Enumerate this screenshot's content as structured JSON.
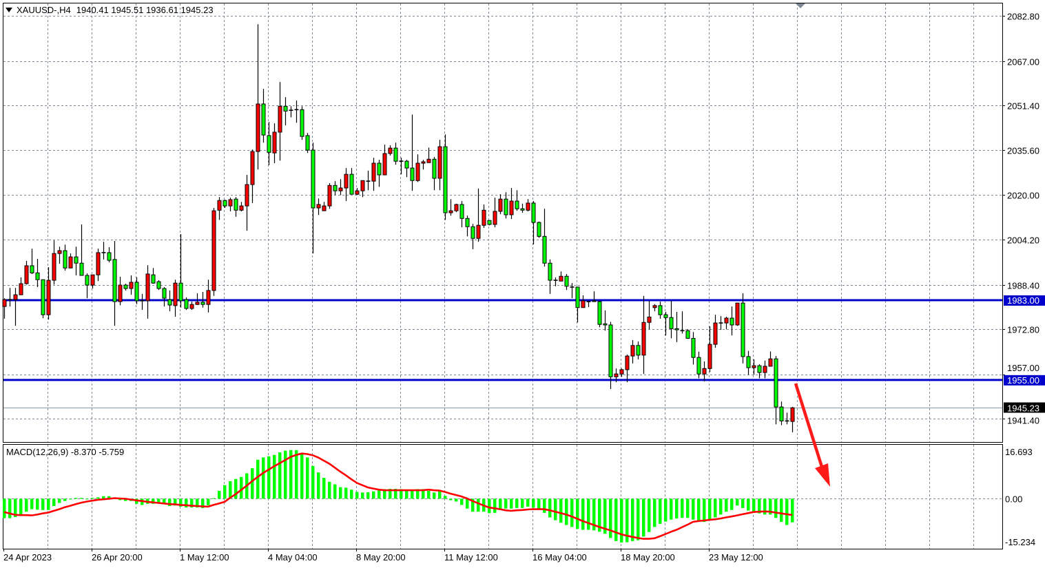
{
  "header": {
    "symbol_label": "XAUUSD-,H4",
    "ohlc": "1940.41 1945.51 1936.61 1945.23",
    "menu_icon": "triangle-down-icon"
  },
  "chart_data": {
    "type": "candlestick",
    "symbol": "XAUUSD-",
    "timeframe": "H4",
    "ylim": [
      1933.2,
      2087.2
    ],
    "grid": true,
    "up_color": "#ff0000",
    "down_color": "#00ff00",
    "outline_color": "#000000",
    "grid_color": "#7d8796",
    "y_ticks": [
      "2082.80",
      "2067.00",
      "2051.40",
      "2035.60",
      "2020.00",
      "2004.20",
      "1988.40",
      "1972.80",
      "1957.00",
      "1941.40"
    ],
    "x_ticks": [
      {
        "label": "24 Apr 2023",
        "candle": 1
      },
      {
        "label": "26 Apr 20:00",
        "candle": 17
      },
      {
        "label": "1 May 12:00",
        "candle": 33
      },
      {
        "label": "4 May 04:00",
        "candle": 49
      },
      {
        "label": "8 May 20:00",
        "candle": 65
      },
      {
        "label": "11 May 12:00",
        "candle": 81
      },
      {
        "label": "16 May 04:00",
        "candle": 97
      },
      {
        "label": "18 May 20:00",
        "candle": 113
      },
      {
        "label": "23 May 12:00",
        "candle": 129
      }
    ],
    "horizontal_levels": [
      {
        "price": 1983.0,
        "label": "1983.00",
        "color": "#0000cc"
      },
      {
        "price": 1955.0,
        "label": "1955.00",
        "color": "#0000cc"
      }
    ],
    "last_price": {
      "price": 1945.23,
      "label": "1945.23"
    },
    "annotation": {
      "type": "arrow",
      "direction": "down",
      "color": "#ff1a1a"
    },
    "candles_ohlc": [
      [
        1980.8,
        1983.7,
        1976.5,
        1983.2
      ],
      [
        1983.2,
        1987.3,
        1980.8,
        1983.2
      ],
      [
        1983.2,
        1987.3,
        1974.0,
        1984.9
      ],
      [
        1984.9,
        1991.0,
        1984.9,
        1988.8
      ],
      [
        1988.8,
        1996.8,
        1988.5,
        1995.1
      ],
      [
        1995.1,
        2001.1,
        1992.2,
        1992.6
      ],
      [
        1992.6,
        1997.5,
        1987.6,
        1990.2
      ],
      [
        1990.2,
        1990.2,
        1976.7,
        1977.9
      ],
      [
        1977.9,
        1994.6,
        1976.2,
        1990.0
      ],
      [
        1990.0,
        2004.0,
        1988.5,
        1999.4
      ],
      [
        1999.4,
        2001.8,
        1995.8,
        2000.4
      ],
      [
        2000.4,
        2002.5,
        1993.4,
        1994.3
      ],
      [
        1994.3,
        1999.4,
        1994.3,
        1998.2
      ],
      [
        1998.2,
        2001.8,
        1991.7,
        1996.0
      ],
      [
        1996.0,
        2009.6,
        1991.7,
        1991.7
      ],
      [
        1991.7,
        1992.4,
        1983.7,
        1988.3
      ],
      [
        1988.3,
        1991.9,
        1987.1,
        1991.9
      ],
      [
        1991.9,
        2001.1,
        1989.7,
        1999.7
      ],
      [
        1999.7,
        2003.5,
        1997.3,
        1999.7
      ],
      [
        1999.7,
        2001.6,
        1996.3,
        1997.0
      ],
      [
        1997.3,
        2003.8,
        1974.0,
        1982.5
      ],
      [
        1982.5,
        1991.2,
        1981.2,
        1988.3
      ],
      [
        1988.3,
        1988.8,
        1986.4,
        1987.1
      ],
      [
        1987.1,
        1991.7,
        1984.9,
        1989.3
      ],
      [
        1989.3,
        1991.0,
        1981.6,
        1982.8
      ],
      [
        1982.8,
        1985.2,
        1979.6,
        1982.8
      ],
      [
        1982.8,
        1995.3,
        1976.5,
        1992.2
      ],
      [
        1991.9,
        1994.3,
        1988.8,
        1989.0
      ],
      [
        1989.5,
        1990.0,
        1986.6,
        1987.1
      ],
      [
        1987.1,
        1987.6,
        1980.8,
        1983.7
      ],
      [
        1983.2,
        1986.4,
        1979.1,
        1981.3
      ],
      [
        1981.1,
        1990.2,
        1977.2,
        1989.0
      ],
      [
        1989.0,
        2006.2,
        1980.4,
        1982.8
      ],
      [
        1983.2,
        1984.0,
        1979.6,
        1980.1
      ],
      [
        1980.1,
        1982.5,
        1979.6,
        1981.5
      ],
      [
        1981.5,
        1985.4,
        1981.3,
        1982.3
      ],
      [
        1982.3,
        1985.9,
        1980.4,
        1981.5
      ],
      [
        1981.5,
        1990.2,
        1978.7,
        1986.4
      ],
      [
        1986.4,
        2015.4,
        1984.5,
        2014.4
      ],
      [
        2014.6,
        2019.2,
        2011.2,
        2018.0
      ],
      [
        2018.0,
        2018.3,
        2015.4,
        2016.1
      ],
      [
        2016.1,
        2019.0,
        2014.2,
        2018.3
      ],
      [
        2018.5,
        2019.2,
        2012.3,
        2014.6
      ],
      [
        2014.6,
        2017.5,
        2014.2,
        2016.1
      ],
      [
        2016.1,
        2027.0,
        2007.4,
        2023.6
      ],
      [
        2023.6,
        2035.9,
        2017.1,
        2035.2
      ],
      [
        2035.2,
        2079.9,
        2028.9,
        2051.9
      ],
      [
        2051.9,
        2057.2,
        2038.3,
        2041.0
      ],
      [
        2040.8,
        2045.6,
        2030.4,
        2034.9
      ],
      [
        2034.7,
        2045.1,
        2031.1,
        2042.0
      ],
      [
        2042.0,
        2059.6,
        2032.0,
        2051.1
      ],
      [
        2051.1,
        2054.3,
        2044.4,
        2049.4
      ],
      [
        2049.7,
        2051.1,
        2047.2,
        2049.7
      ],
      [
        2049.9,
        2053.1,
        2045.3,
        2049.9
      ],
      [
        2049.9,
        2051.1,
        2039.3,
        2040.5
      ],
      [
        2040.8,
        2041.7,
        2034.7,
        2035.7
      ],
      [
        2035.7,
        2038.3,
        1999.4,
        2015.4
      ],
      [
        2015.4,
        2018.7,
        2012.9,
        2016.6
      ],
      [
        2014.4,
        2017.5,
        2014.4,
        2016.1
      ],
      [
        2016.1,
        2024.1,
        2015.1,
        2023.3
      ],
      [
        2023.3,
        2024.8,
        2019.9,
        2021.4
      ],
      [
        2021.4,
        2025.5,
        2019.9,
        2022.4
      ],
      [
        2022.4,
        2029.4,
        2017.8,
        2027.2
      ],
      [
        2027.2,
        2029.4,
        2020.2,
        2020.2
      ],
      [
        2020.2,
        2022.4,
        2019.9,
        2021.4
      ],
      [
        2021.4,
        2025.0,
        2019.2,
        2025.0
      ],
      [
        2024.8,
        2028.5,
        2021.6,
        2024.8
      ],
      [
        2024.8,
        2033.0,
        2021.4,
        2031.1
      ],
      [
        2031.1,
        2032.3,
        2022.8,
        2027.0
      ],
      [
        2027.0,
        2037.6,
        2027.0,
        2034.5
      ],
      [
        2034.5,
        2037.4,
        2033.8,
        2036.4
      ],
      [
        2036.4,
        2038.3,
        2030.6,
        2031.8
      ],
      [
        2031.8,
        2033.0,
        2027.2,
        2031.8
      ],
      [
        2031.8,
        2032.3,
        2026.2,
        2029.4
      ],
      [
        2029.4,
        2048.2,
        2021.4,
        2025.0
      ],
      [
        2025.0,
        2034.2,
        2024.5,
        2031.1
      ],
      [
        2031.1,
        2032.3,
        2028.9,
        2031.6
      ],
      [
        2031.3,
        2036.6,
        2031.3,
        2032.5
      ],
      [
        2032.5,
        2033.3,
        2021.6,
        2025.8
      ],
      [
        2025.8,
        2039.3,
        2021.6,
        2036.9
      ],
      [
        2036.9,
        2041.2,
        2011.2,
        2013.7
      ],
      [
        2013.7,
        2018.5,
        2012.7,
        2014.4
      ],
      [
        2014.4,
        2016.9,
        2013.9,
        2016.6
      ],
      [
        2016.6,
        2017.8,
        2008.6,
        2011.7
      ],
      [
        2011.7,
        2012.7,
        2005.4,
        2008.8
      ],
      [
        2008.8,
        2009.8,
        2000.9,
        2004.7
      ],
      [
        2004.7,
        2022.2,
        2003.5,
        2009.3
      ],
      [
        2009.3,
        2016.6,
        2008.4,
        2014.6
      ],
      [
        2011.0,
        2011.0,
        2009.3,
        2009.6
      ],
      [
        2009.6,
        2019.0,
        2008.6,
        2014.2
      ],
      [
        2014.2,
        2020.2,
        2013.2,
        2018.5
      ],
      [
        2018.5,
        2020.9,
        2011.7,
        2013.0
      ],
      [
        2013.0,
        2022.4,
        2011.5,
        2017.8
      ],
      [
        2017.8,
        2021.6,
        2014.4,
        2015.1
      ],
      [
        2015.1,
        2016.9,
        2013.7,
        2014.6
      ],
      [
        2014.6,
        2018.5,
        2014.2,
        2017.1
      ],
      [
        2017.1,
        2017.8,
        2002.6,
        2010.3
      ],
      [
        2010.3,
        2010.6,
        2004.9,
        2005.4
      ],
      [
        2005.4,
        2015.1,
        1994.8,
        1996.0
      ],
      [
        1996.0,
        1997.3,
        1985.2,
        1990.0
      ],
      [
        1990.0,
        1991.0,
        1987.9,
        1990.0
      ],
      [
        1989.7,
        1993.1,
        1989.7,
        1991.4
      ],
      [
        1991.4,
        1992.2,
        1986.6,
        1987.9
      ],
      [
        1987.6,
        1989.0,
        1983.7,
        1987.6
      ],
      [
        1987.6,
        1987.6,
        1975.2,
        1980.4
      ],
      [
        1980.4,
        1984.7,
        1980.4,
        1982.8
      ],
      [
        1982.5,
        1982.8,
        1980.6,
        1982.5
      ],
      [
        1982.8,
        1986.1,
        1982.5,
        1982.5
      ],
      [
        1982.5,
        1982.8,
        1973.5,
        1974.5
      ],
      [
        1974.7,
        1979.4,
        1972.3,
        1974.3
      ],
      [
        1974.3,
        1975.4,
        1951.8,
        1956.1
      ],
      [
        1956.1,
        1959.0,
        1954.2,
        1957.1
      ],
      [
        1957.1,
        1959.0,
        1956.1,
        1958.6
      ],
      [
        1958.6,
        1963.9,
        1954.2,
        1963.4
      ],
      [
        1963.4,
        1969.0,
        1960.8,
        1967.1
      ],
      [
        1967.1,
        1968.5,
        1962.2,
        1963.7
      ],
      [
        1963.7,
        1984.5,
        1957.1,
        1975.2
      ],
      [
        1975.2,
        1982.8,
        1972.8,
        1977.1
      ],
      [
        1980.4,
        1981.6,
        1979.1,
        1981.1
      ],
      [
        1981.1,
        1982.5,
        1976.5,
        1977.9
      ],
      [
        1977.9,
        1978.9,
        1970.6,
        1976.9
      ],
      [
        1976.9,
        1982.8,
        1969.6,
        1973.0
      ],
      [
        1973.0,
        1978.9,
        1968.3,
        1972.6
      ],
      [
        1972.3,
        1979.1,
        1971.3,
        1972.3
      ],
      [
        1972.3,
        1972.8,
        1969.4,
        1969.6
      ],
      [
        1969.6,
        1971.8,
        1960.4,
        1962.9
      ],
      [
        1962.9,
        1964.9,
        1955.6,
        1957.1
      ],
      [
        1957.1,
        1961.5,
        1954.5,
        1959.0
      ],
      [
        1959.0,
        1973.8,
        1957.8,
        1967.5
      ],
      [
        1967.5,
        1977.9,
        1966.3,
        1975.0
      ],
      [
        1975.0,
        1977.4,
        1972.6,
        1975.0
      ],
      [
        1975.0,
        1977.2,
        1972.8,
        1976.7
      ],
      [
        1976.7,
        1980.8,
        1970.6,
        1974.3
      ],
      [
        1974.3,
        1982.0,
        1974.0,
        1982.0
      ],
      [
        1982.0,
        1985.4,
        1960.8,
        1963.2
      ],
      [
        1963.2,
        1965.2,
        1956.8,
        1959.3
      ],
      [
        1959.3,
        1962.2,
        1956.8,
        1960.0
      ],
      [
        1960.0,
        1960.5,
        1955.6,
        1957.6
      ],
      [
        1957.6,
        1961.8,
        1955.6,
        1959.8
      ],
      [
        1959.8,
        1965.0,
        1959.8,
        1962.4
      ],
      [
        1962.4,
        1963.4,
        1939.4,
        1945.5
      ],
      [
        1945.5,
        1947.4,
        1939.1,
        1940.6
      ],
      [
        1940.6,
        1943.5,
        1939.4,
        1940.4
      ],
      [
        1940.41,
        1945.51,
        1936.61,
        1945.23
      ]
    ],
    "macd": {
      "label": "MACD(12,26,9) -8.370 -5.759",
      "ylim": [
        -17.7,
        19.1
      ],
      "y_ticks": [
        {
          "value": 16.693,
          "label": "16.693"
        },
        {
          "value": 0,
          "label": "0.00"
        },
        {
          "value": -15.234,
          "label": "-15.234"
        }
      ],
      "histogram_color": "#00ff00",
      "signal_color": "#ff0000",
      "histogram": [
        -6.9,
        -6.9,
        -6.5,
        -6.0,
        -4.6,
        -3.7,
        -3.9,
        -4.0,
        -4.0,
        -2.6,
        -1.5,
        -0.8,
        0.0,
        0.3,
        0.3,
        0.0,
        0.3,
        0.5,
        0.9,
        0.9,
        0.3,
        -0.5,
        -0.8,
        -0.8,
        -1.8,
        -2.2,
        -1.8,
        -1.8,
        -1.6,
        -1.8,
        -2.6,
        -2.4,
        -2.8,
        -3.1,
        -3.1,
        -3.1,
        -3.3,
        -2.3,
        0.2,
        2.8,
        4.8,
        6.2,
        7.0,
        7.7,
        9.0,
        10.8,
        13.8,
        14.6,
        15.0,
        15.5,
        16.4,
        17.0,
        17.2,
        17.2,
        16.2,
        14.6,
        11.6,
        9.3,
        7.4,
        6.0,
        5.1,
        4.1,
        3.9,
        3.2,
        2.4,
        2.2,
        2.3,
        2.6,
        3.0,
        3.4,
        3.5,
        3.5,
        3.4,
        3.2,
        3.0,
        3.4,
        3.4,
        2.8,
        2.2,
        3.0,
        1.0,
        -0.5,
        -1.0,
        -2.2,
        -3.5,
        -4.6,
        -4.6,
        -4.6,
        -5.1,
        -5.0,
        -4.0,
        -3.5,
        -3.5,
        -3.3,
        -3.3,
        -2.8,
        -3.2,
        -3.5,
        -5.0,
        -6.6,
        -7.6,
        -8.5,
        -9.3,
        -10.0,
        -10.7,
        -11.0,
        -11.0,
        -11.2,
        -11.7,
        -12.4,
        -13.9,
        -15.0,
        -15.5,
        -15.4,
        -15.0,
        -14.7,
        -13.4,
        -11.8,
        -10.0,
        -8.9,
        -8.1,
        -7.4,
        -7.0,
        -6.8,
        -6.8,
        -7.4,
        -8.0,
        -8.2,
        -7.6,
        -6.6,
        -5.6,
        -4.6,
        -4.0,
        -2.4,
        -3.3,
        -4.2,
        -4.6,
        -5.2,
        -5.6,
        -5.6,
        -6.8,
        -8.2,
        -9.3,
        -8.37
      ],
      "signal": [
        -4.7,
        -5.2,
        -5.7,
        -5.8,
        -5.8,
        -5.9,
        -5.6,
        -5.2,
        -4.9,
        -4.3,
        -3.7,
        -3.0,
        -2.5,
        -1.9,
        -1.4,
        -1.0,
        -0.7,
        -0.4,
        -0.2,
        0.0,
        0.2,
        0.1,
        0.0,
        -0.3,
        -0.6,
        -0.8,
        -1.1,
        -1.3,
        -1.5,
        -1.7,
        -1.9,
        -2.0,
        -2.2,
        -2.3,
        -2.5,
        -2.6,
        -2.7,
        -2.8,
        -2.2,
        -1.7,
        -1.1,
        0.3,
        1.6,
        3.1,
        4.6,
        6.2,
        7.7,
        9.1,
        10.3,
        11.5,
        12.6,
        13.7,
        14.8,
        15.5,
        16.0,
        15.8,
        15.4,
        14.6,
        13.5,
        12.4,
        11.0,
        9.6,
        8.3,
        6.9,
        5.6,
        4.8,
        4.0,
        3.6,
        3.2,
        3.0,
        3.0,
        3.0,
        3.0,
        3.0,
        3.0,
        3.0,
        3.0,
        3.2,
        3.0,
        2.9,
        2.4,
        1.8,
        1.3,
        0.8,
        0.1,
        -0.8,
        -1.6,
        -2.4,
        -3.1,
        -3.4,
        -3.7,
        -4.1,
        -4.3,
        -4.1,
        -4.0,
        -3.8,
        -3.7,
        -3.7,
        -3.7,
        -4.1,
        -4.6,
        -5.1,
        -5.6,
        -6.3,
        -7.1,
        -7.9,
        -8.6,
        -9.3,
        -10.0,
        -10.6,
        -11.2,
        -11.9,
        -12.6,
        -13.1,
        -13.5,
        -13.9,
        -14.2,
        -14.2,
        -14.0,
        -13.3,
        -12.5,
        -11.7,
        -11.0,
        -10.1,
        -9.2,
        -8.2,
        -7.9,
        -7.7,
        -7.5,
        -7.3,
        -7.0,
        -6.6,
        -6.3,
        -5.9,
        -5.5,
        -5.1,
        -4.7,
        -4.6,
        -4.5,
        -4.6,
        -4.9,
        -5.2,
        -5.5,
        -5.76
      ]
    }
  }
}
